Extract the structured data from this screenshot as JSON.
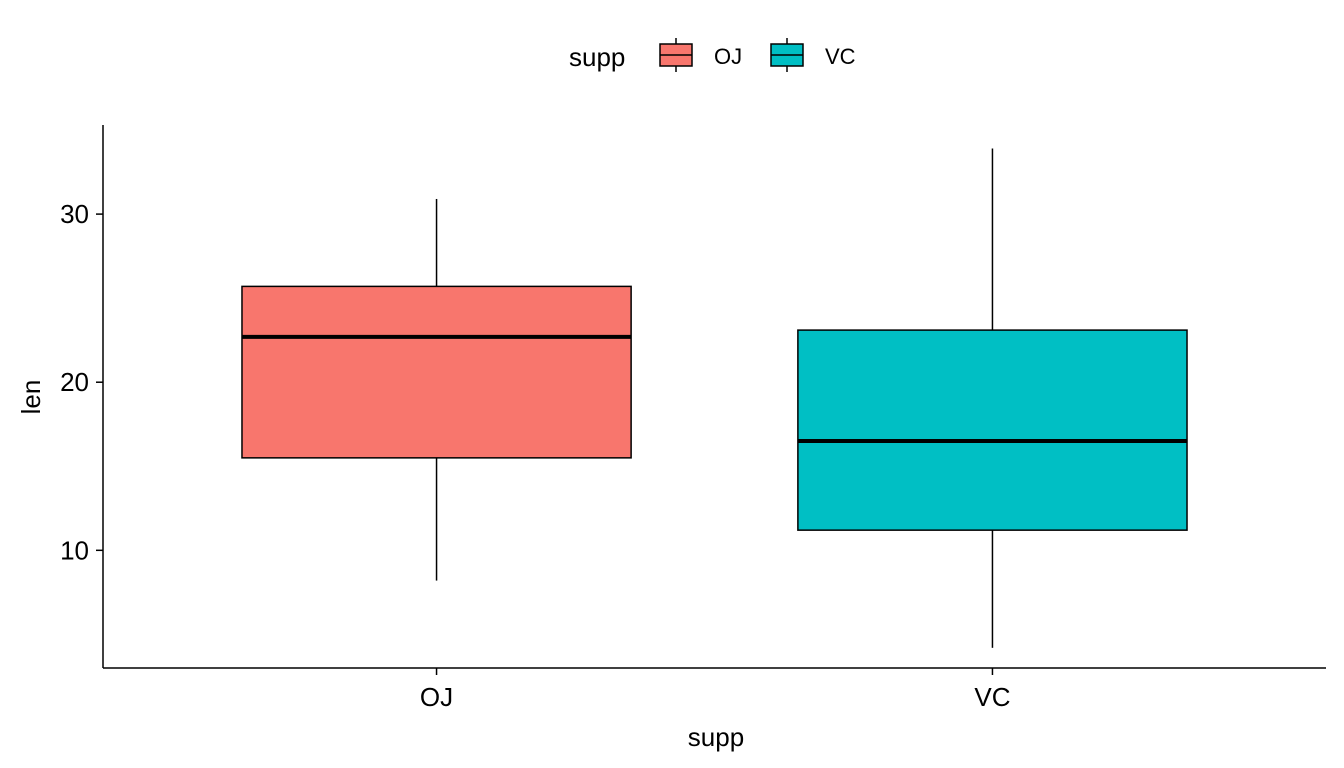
{
  "chart_data": {
    "type": "boxplot",
    "xlabel": "supp",
    "ylabel": "len",
    "categories": [
      "OJ",
      "VC"
    ],
    "ylim": [
      3.0,
      35.3
    ],
    "yticks": [
      10,
      20,
      30
    ],
    "ytick_labels": [
      "10",
      "20",
      "30"
    ],
    "grid": false,
    "legend": {
      "title": "supp",
      "position": "top",
      "entries": [
        "OJ",
        "VC"
      ]
    },
    "series": [
      {
        "name": "OJ",
        "color": "#F8766D",
        "whisker_low": 8.2,
        "q1": 15.5,
        "median": 22.7,
        "q3": 25.7,
        "whisker_high": 30.9
      },
      {
        "name": "VC",
        "color": "#00BFC4",
        "whisker_low": 4.2,
        "q1": 11.2,
        "median": 16.5,
        "q3": 23.1,
        "whisker_high": 33.9
      }
    ]
  }
}
